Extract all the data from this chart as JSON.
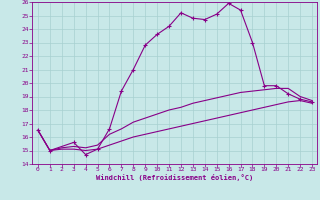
{
  "xlabel": "Windchill (Refroidissement éolien,°C)",
  "bg_color": "#c8e8e8",
  "grid_color": "#a8d0d0",
  "line_color": "#880088",
  "xlim": [
    -0.5,
    23.4
  ],
  "ylim": [
    14,
    26
  ],
  "xticks": [
    0,
    1,
    2,
    3,
    4,
    5,
    6,
    7,
    8,
    9,
    10,
    11,
    12,
    13,
    14,
    15,
    16,
    17,
    18,
    19,
    20,
    21,
    22,
    23
  ],
  "yticks": [
    14,
    15,
    16,
    17,
    18,
    19,
    20,
    21,
    22,
    23,
    24,
    25,
    26
  ],
  "line1_x": [
    0,
    1,
    3,
    4,
    5,
    6,
    7,
    8,
    9,
    10,
    11,
    12,
    13,
    14,
    15,
    16,
    17,
    18,
    19,
    20,
    21,
    22,
    23
  ],
  "line1_y": [
    16.5,
    15.0,
    15.6,
    14.7,
    15.1,
    16.6,
    19.4,
    21.0,
    22.8,
    23.6,
    24.2,
    25.2,
    24.8,
    24.7,
    25.1,
    25.9,
    25.4,
    23.0,
    19.8,
    19.8,
    19.2,
    18.8,
    18.6
  ],
  "line2_x": [
    0,
    1,
    2,
    3,
    4,
    5,
    6,
    7,
    8,
    9,
    10,
    11,
    12,
    13,
    14,
    15,
    16,
    17,
    18,
    19,
    20,
    21,
    22,
    23
  ],
  "line2_y": [
    16.5,
    15.0,
    15.2,
    15.3,
    15.2,
    15.4,
    16.2,
    16.6,
    17.1,
    17.4,
    17.7,
    18.0,
    18.2,
    18.5,
    18.7,
    18.9,
    19.1,
    19.3,
    19.4,
    19.5,
    19.6,
    19.6,
    19.0,
    18.7
  ],
  "line3_x": [
    0,
    1,
    2,
    3,
    4,
    5,
    6,
    7,
    8,
    9,
    10,
    11,
    12,
    13,
    14,
    15,
    16,
    17,
    18,
    19,
    20,
    21,
    22,
    23
  ],
  "line3_y": [
    16.5,
    15.0,
    15.1,
    15.1,
    15.0,
    15.1,
    15.4,
    15.7,
    16.0,
    16.2,
    16.4,
    16.6,
    16.8,
    17.0,
    17.2,
    17.4,
    17.6,
    17.8,
    18.0,
    18.2,
    18.4,
    18.6,
    18.7,
    18.5
  ]
}
